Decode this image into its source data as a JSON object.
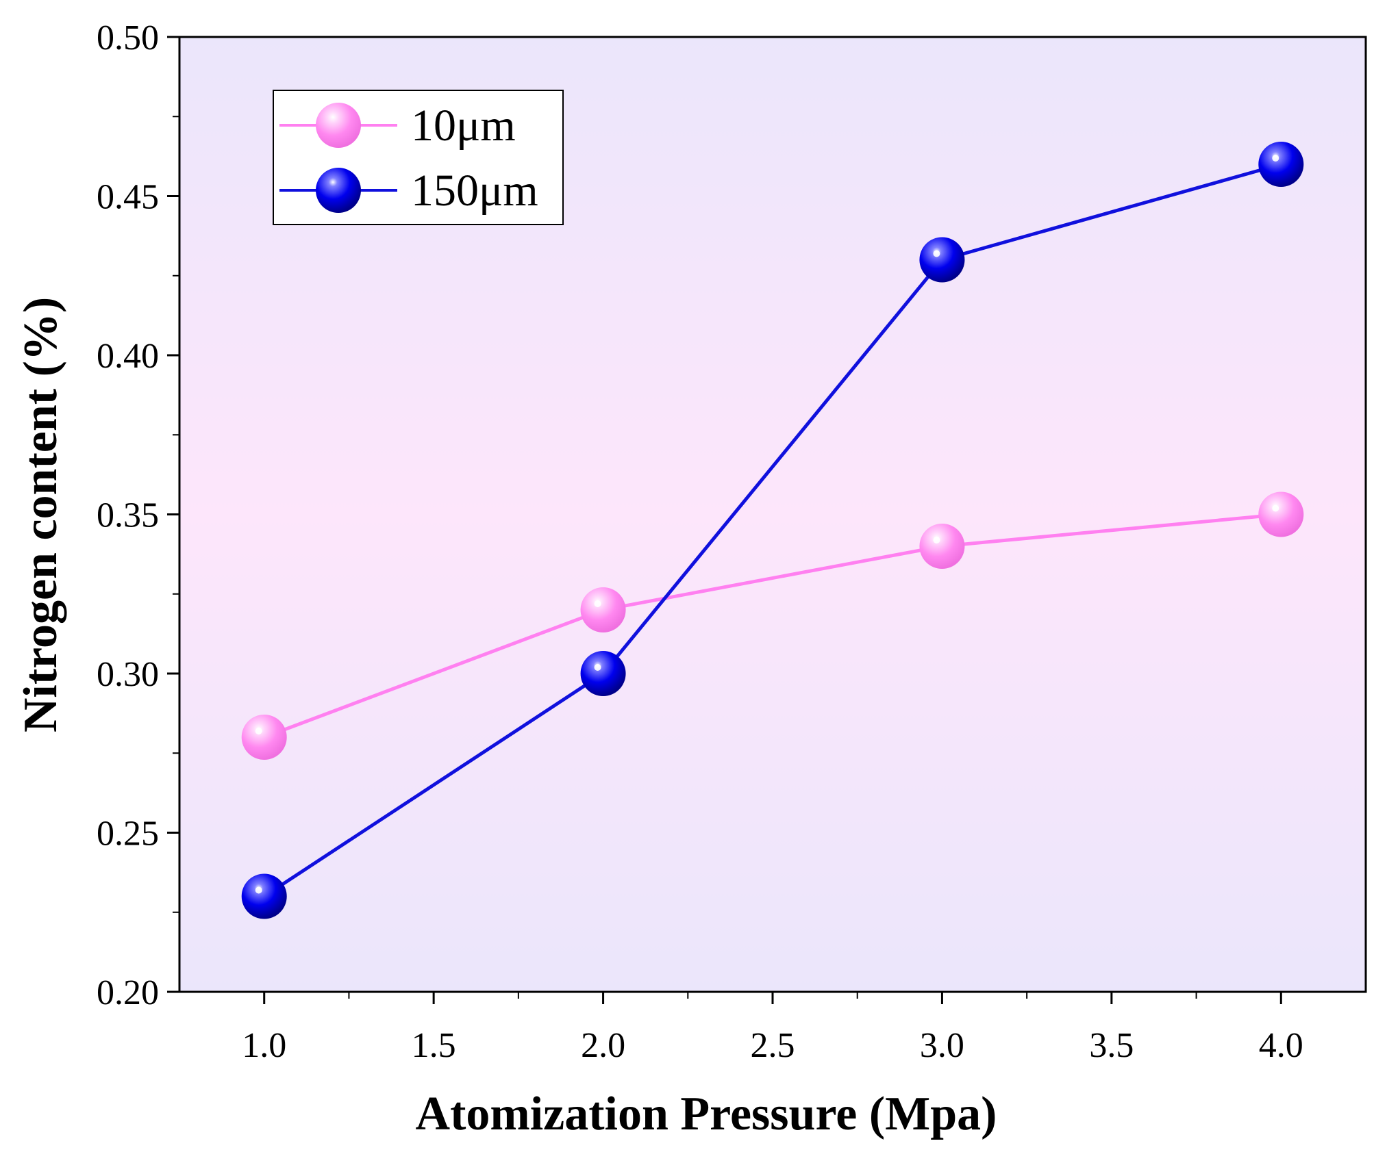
{
  "chart_data": {
    "type": "line",
    "title": "",
    "xlabel": "Atomization Pressure (Mpa)",
    "ylabel": "Nitrogen content (%)",
    "x": [
      1.0,
      2.0,
      3.0,
      4.0
    ],
    "xlim": [
      0.75,
      4.25
    ],
    "ylim": [
      0.2,
      0.5
    ],
    "xticks": [
      1.0,
      1.5,
      2.0,
      2.5,
      3.0,
      3.5,
      4.0
    ],
    "xtick_labels": [
      "1.0",
      "1.5",
      "2.0",
      "2.5",
      "3.0",
      "3.5",
      "4.0"
    ],
    "yticks": [
      0.2,
      0.25,
      0.3,
      0.35,
      0.4,
      0.45,
      0.5
    ],
    "ytick_labels": [
      "0.20",
      "0.25",
      "0.30",
      "0.35",
      "0.40",
      "0.45",
      "0.50"
    ],
    "grid": false,
    "legend_position": "top-left",
    "series": [
      {
        "name": "10μm",
        "values": [
          0.28,
          0.32,
          0.34,
          0.35
        ],
        "color": "#ff80f0",
        "line_color": "#ff80f0"
      },
      {
        "name": "150μm",
        "values": [
          0.23,
          0.3,
          0.43,
          0.46
        ],
        "color": "#0000ee",
        "line_color": "#1010dd"
      }
    ]
  },
  "colors": {
    "plot_bg_top": "#ebe6fb",
    "plot_bg_mid": "#fde6fb",
    "plot_bg_bottom": "#ebe6fb",
    "axis": "#000000"
  }
}
